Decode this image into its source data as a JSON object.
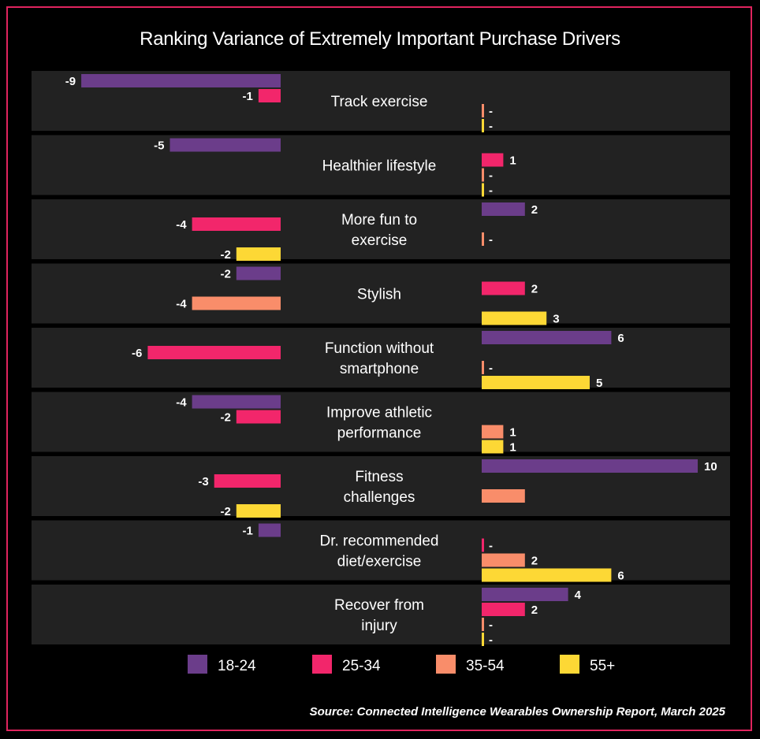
{
  "chart_data": {
    "type": "bar",
    "title": "Ranking Variance of Extremely Important Purchase Drivers",
    "source": "Source: Connected Intelligence Wearables Ownership Report, March 2025",
    "categories": [
      [
        "Track exercise"
      ],
      [
        "Healthier lifestyle"
      ],
      [
        "More fun to",
        "exercise"
      ],
      [
        "Stylish"
      ],
      [
        "Function without",
        "smartphone"
      ],
      [
        "Improve athletic",
        "performance"
      ],
      [
        "Fitness",
        "challenges"
      ],
      [
        "Dr. recommended",
        "diet/exercise"
      ],
      [
        "Recover from",
        "injury"
      ]
    ],
    "series": [
      {
        "name": "18-24",
        "color": "#6b3d8a",
        "values": [
          -9,
          -5,
          2,
          -2,
          6,
          -4,
          10,
          -1,
          4
        ]
      },
      {
        "name": "25-34",
        "color": "#f2266b",
        "values": [
          -1,
          1,
          -4,
          2,
          -6,
          -2,
          -3,
          0,
          2
        ]
      },
      {
        "name": "35-54",
        "color": "#f98d6a",
        "values": [
          0,
          0,
          0,
          -4,
          0,
          1,
          2,
          2,
          0
        ]
      },
      {
        "name": "55+",
        "color": "#fdd835",
        "values": [
          0,
          0,
          -2,
          3,
          5,
          1,
          -2,
          6,
          0
        ]
      }
    ],
    "display_labels": [
      [
        "-9",
        "-1",
        "-",
        "-"
      ],
      [
        "-5",
        "1",
        "-",
        "-"
      ],
      [
        "2",
        "-4",
        "-",
        "-2"
      ],
      [
        "-2",
        "2",
        "-4",
        "3"
      ],
      [
        "6",
        "-6",
        "-",
        "5"
      ],
      [
        "-4",
        "-2",
        "1",
        "1"
      ],
      [
        "10",
        "-3",
        "",
        "-2"
      ],
      [
        "-1",
        "-",
        "2",
        "6"
      ],
      [
        "4",
        "2",
        "-",
        "-"
      ]
    ],
    "legend_position": "bottom"
  }
}
